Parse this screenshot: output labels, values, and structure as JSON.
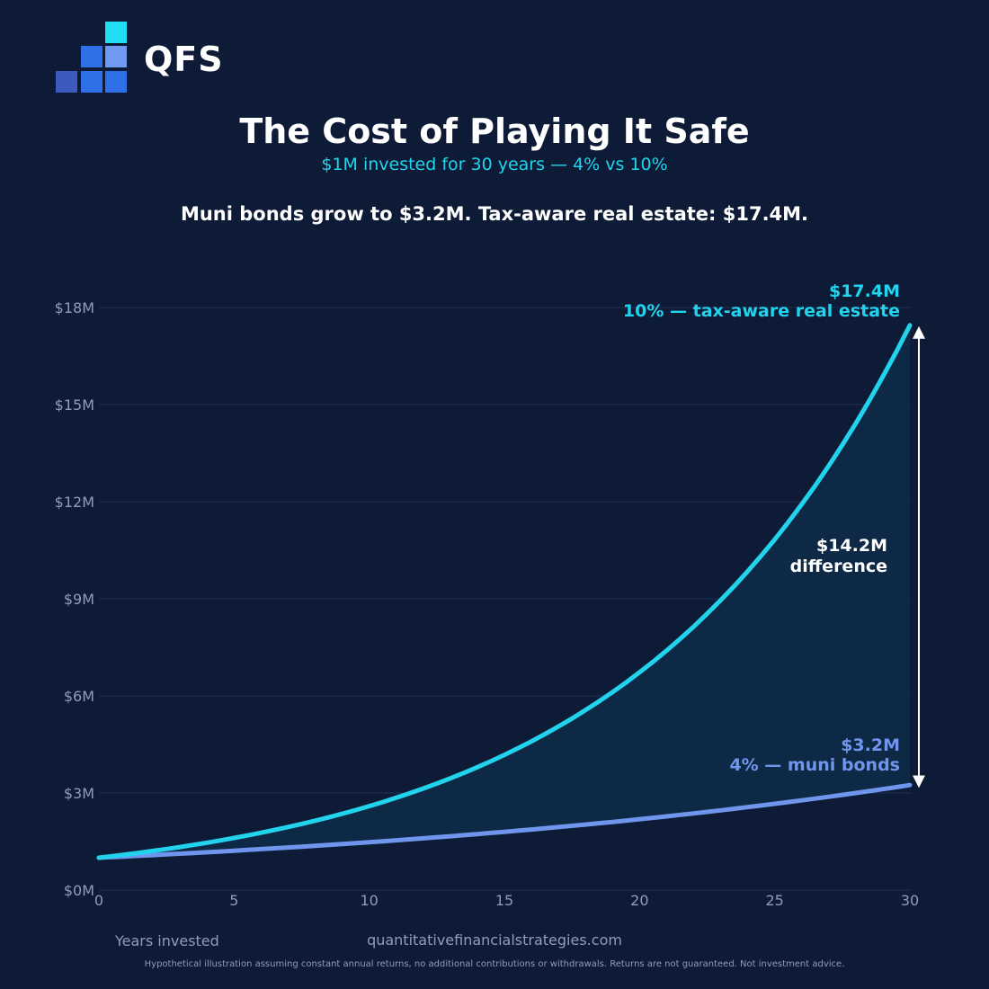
{
  "brand": {
    "name": "QFS",
    "colors": {
      "cyan": "#22ddf4",
      "blue": "#2f6fe8",
      "light_blue": "#6f9af0",
      "dark_blue": "#3d5bbf"
    }
  },
  "header": {
    "title": "The Cost of Playing It Safe",
    "subtitle": "$1M invested for 30 years  —  4% vs 10%",
    "headline": "Muni bonds grow to $3.2M.  Tax-aware real estate: $17.4M."
  },
  "chart_data": {
    "type": "line",
    "xlabel": "Years invested",
    "ylabel": "",
    "xlim": [
      0,
      30
    ],
    "ylim": [
      0,
      19
    ],
    "x_ticks": [
      0,
      5,
      10,
      15,
      20,
      25,
      30
    ],
    "y_ticks": [
      0,
      3,
      6,
      9,
      12,
      15,
      18
    ],
    "y_tick_labels": [
      "$0M",
      "$3M",
      "$6M",
      "$9M",
      "$12M",
      "$15M",
      "$18M"
    ],
    "grid": true,
    "series": [
      {
        "rate": 0.1,
        "x": [
          0,
          2,
          4,
          6,
          8,
          10,
          12,
          14,
          16,
          18,
          20,
          22,
          24,
          26,
          28,
          30
        ],
        "values": [
          1.0,
          1.21,
          1.46,
          1.77,
          2.14,
          2.59,
          3.14,
          3.8,
          4.59,
          5.56,
          6.73,
          8.14,
          9.85,
          11.92,
          14.42,
          17.45
        ],
        "label_value": "$17.4M",
        "label_name": "10% — tax-aware real estate",
        "color": "#22d3ee"
      },
      {
        "rate": 0.04,
        "x": [
          0,
          2,
          4,
          6,
          8,
          10,
          12,
          14,
          16,
          18,
          20,
          22,
          24,
          26,
          28,
          30
        ],
        "values": [
          1.0,
          1.08,
          1.17,
          1.27,
          1.37,
          1.48,
          1.6,
          1.73,
          1.87,
          2.03,
          2.19,
          2.37,
          2.56,
          2.77,
          3.0,
          3.24
        ],
        "label_value": "$3.2M",
        "label_name": "4% — muni bonds",
        "color": "#6f96ec"
      }
    ],
    "annotation": {
      "value": "$14.2M",
      "text": "difference"
    }
  },
  "footer": {
    "site": "quantitativefinancialstrategies.com",
    "disclaimer": "Hypothetical illustration assuming constant annual returns, no additional contributions or withdrawals. Returns are not guaranteed. Not investment advice."
  }
}
